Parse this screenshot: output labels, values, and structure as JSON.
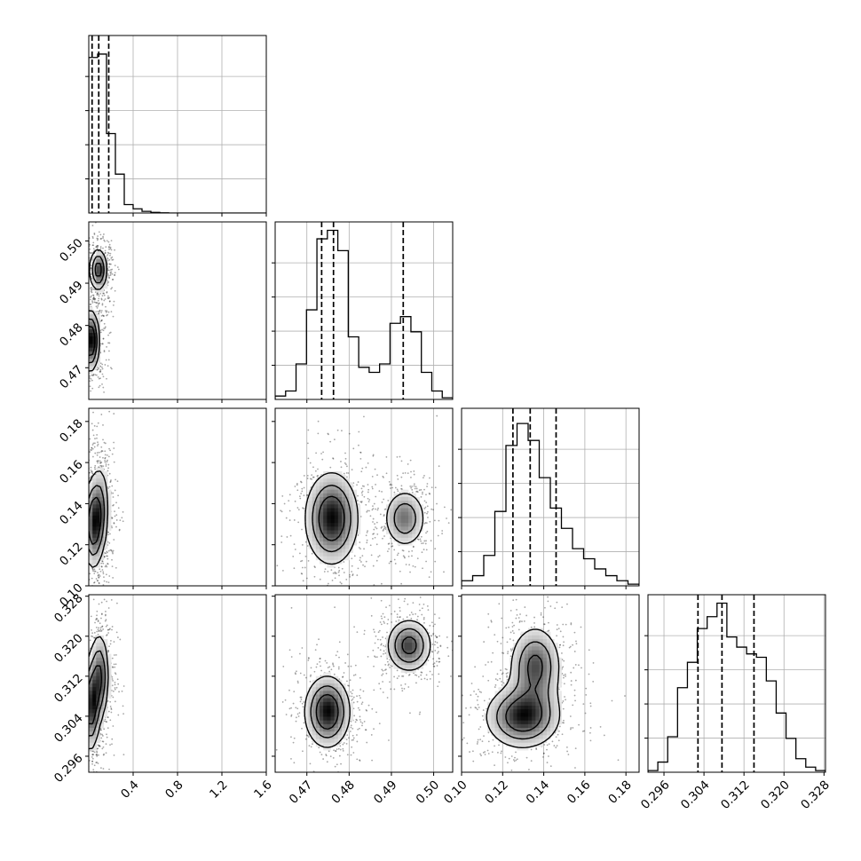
{
  "chart_data": {
    "type": "corner",
    "parameters": [
      {
        "index": 0,
        "range": [
          0.0,
          1.6
        ],
        "ticks": [
          0.4,
          0.8,
          1.2,
          1.6
        ],
        "tick_labels": [
          "0.4",
          "0.8",
          "1.2",
          "1.6"
        ],
        "quantiles": [
          0.03,
          0.09,
          0.18
        ]
      },
      {
        "index": 1,
        "range": [
          0.4625,
          0.5045
        ],
        "ticks": [
          0.47,
          0.48,
          0.49,
          0.5
        ],
        "tick_labels": [
          "0.47",
          "0.48",
          "0.49",
          "0.50"
        ],
        "quantiles": [
          0.4735,
          0.4763,
          0.4928
        ]
      },
      {
        "index": 2,
        "range": [
          0.1,
          0.1864
        ],
        "ticks": [
          0.1,
          0.12,
          0.14,
          0.16,
          0.18
        ],
        "tick_labels": [
          "0.10",
          "0.12",
          "0.14",
          "0.16",
          "0.18"
        ],
        "quantiles": [
          0.125,
          0.1334,
          0.146
        ]
      },
      {
        "index": 3,
        "range": [
          0.2928,
          0.3283
        ],
        "ticks": [
          0.296,
          0.304,
          0.312,
          0.32,
          0.328
        ],
        "tick_labels": [
          "0.296",
          "0.304",
          "0.312",
          "0.320",
          "0.328"
        ],
        "quantiles": [
          0.3028,
          0.3076,
          0.314
        ]
      }
    ],
    "histograms": [
      {
        "index": 0,
        "heights": [
          0.92,
          0.94,
          0.47,
          0.23,
          0.05,
          0.025,
          0.01,
          0.004,
          0.001,
          0,
          0,
          0,
          0,
          0,
          0,
          0,
          0,
          0,
          0,
          0
        ]
      },
      {
        "index": 1,
        "heights": [
          0.02,
          0.05,
          0.21,
          0.53,
          0.95,
          1.0,
          0.88,
          0.37,
          0.19,
          0.16,
          0.21,
          0.45,
          0.49,
          0.4,
          0.16,
          0.05,
          0.01
        ]
      },
      {
        "index": 2,
        "heights": [
          0.03,
          0.06,
          0.18,
          0.44,
          0.83,
          0.96,
          0.86,
          0.64,
          0.46,
          0.34,
          0.22,
          0.16,
          0.1,
          0.06,
          0.03,
          0.01
        ]
      },
      {
        "index": 3,
        "heights": [
          0.01,
          0.06,
          0.21,
          0.5,
          0.65,
          0.85,
          0.92,
          1.0,
          0.8,
          0.74,
          0.7,
          0.68,
          0.54,
          0.35,
          0.2,
          0.08,
          0.03,
          0.01
        ]
      }
    ],
    "density_modes": [
      {
        "row": 1,
        "col": 0,
        "blobs": [
          {
            "x": 0.03,
            "y": 0.4765,
            "sx": 0.045,
            "sy": 0.004,
            "w": 0.55
          },
          {
            "x": 0.1,
            "y": 0.493,
            "sx": 0.045,
            "sy": 0.0028,
            "w": 0.45
          }
        ]
      },
      {
        "row": 2,
        "col": 0,
        "blobs": [
          {
            "x": 0.05,
            "y": 0.13,
            "sx": 0.05,
            "sy": 0.012,
            "w": 0.65
          },
          {
            "x": 0.12,
            "y": 0.138,
            "sx": 0.05,
            "sy": 0.013,
            "w": 0.35
          }
        ]
      },
      {
        "row": 2,
        "col": 1,
        "blobs": [
          {
            "x": 0.476,
            "y": 0.133,
            "sx": 0.0035,
            "sy": 0.0125,
            "w": 0.6
          },
          {
            "x": 0.493,
            "y": 0.133,
            "sx": 0.0028,
            "sy": 0.008,
            "w": 0.4
          }
        ]
      },
      {
        "row": 3,
        "col": 0,
        "blobs": [
          {
            "x": 0.03,
            "y": 0.306,
            "sx": 0.045,
            "sy": 0.005,
            "w": 0.55
          },
          {
            "x": 0.11,
            "y": 0.312,
            "sx": 0.05,
            "sy": 0.005,
            "w": 0.45
          }
        ]
      },
      {
        "row": 3,
        "col": 1,
        "blobs": [
          {
            "x": 0.475,
            "y": 0.305,
            "sx": 0.003,
            "sy": 0.004,
            "w": 0.55
          },
          {
            "x": 0.494,
            "y": 0.318,
            "sx": 0.003,
            "sy": 0.003,
            "w": 0.45
          }
        ]
      },
      {
        "row": 3,
        "col": 2,
        "blobs": [
          {
            "x": 0.13,
            "y": 0.304,
            "sx": 0.01,
            "sy": 0.0035,
            "w": 0.55
          },
          {
            "x": 0.136,
            "y": 0.314,
            "sx": 0.007,
            "sy": 0.0045,
            "w": 0.45
          }
        ]
      }
    ],
    "grid": true,
    "quantile_style": "dashed",
    "contour_levels": 3,
    "title": "",
    "xlabels": [
      "",
      "",
      "",
      ""
    ],
    "ylabels": [
      "",
      "",
      "",
      ""
    ]
  }
}
